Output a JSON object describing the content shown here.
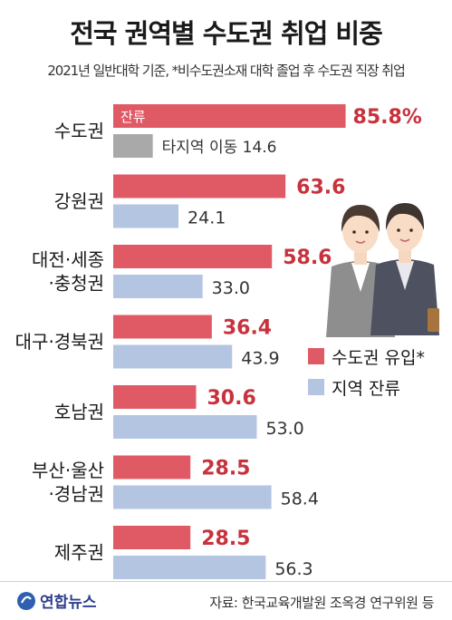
{
  "title": "전국 권역별 수도권 취업 비중",
  "subtitle": "2021년 일반대학 기준, *비수도권소재 대학 졸업 후 수도권 직장 취업",
  "source": "자료: 한국교육개발원 조옥경 연구위원 등",
  "logo_text": "연합뉴스",
  "legend": {
    "red_label": "수도권 유입*",
    "blue_label": "지역 잔류"
  },
  "colors": {
    "red": "#e05a66",
    "blue": "#b4c5e2",
    "grey": "#a9a9a9",
    "value_red": "#c7323c"
  },
  "chart_data": {
    "type": "bar",
    "orientation": "horizontal",
    "title": "전국 권역별 수도권 취업 비중",
    "unit": "%",
    "categories": [
      [
        "수도권"
      ],
      [
        "강원권"
      ],
      [
        "대전·세종",
        "·충청권"
      ],
      [
        "대구·경북권"
      ],
      [
        "호남권"
      ],
      [
        "부산·울산",
        "·경남권"
      ],
      [
        "제주권"
      ]
    ],
    "series": [
      {
        "name": "수도권 유입*",
        "values": [
          85.8,
          63.6,
          58.6,
          36.4,
          30.6,
          28.5,
          28.5
        ],
        "value_labels": [
          "85.8%",
          "63.6",
          "58.6",
          "36.4",
          "30.6",
          "28.5",
          "28.5"
        ]
      },
      {
        "name": "지역 잔류",
        "values": [
          14.6,
          24.1,
          33.0,
          43.9,
          53.0,
          58.4,
          56.3
        ],
        "value_labels": [
          "14.6",
          "24.1",
          "33.0",
          "43.9",
          "53.0",
          "58.4",
          "56.3"
        ]
      }
    ],
    "capital_region_labels": {
      "stay": "잔류",
      "move": "타지역 이동"
    },
    "xlim": [
      0,
      100
    ]
  }
}
